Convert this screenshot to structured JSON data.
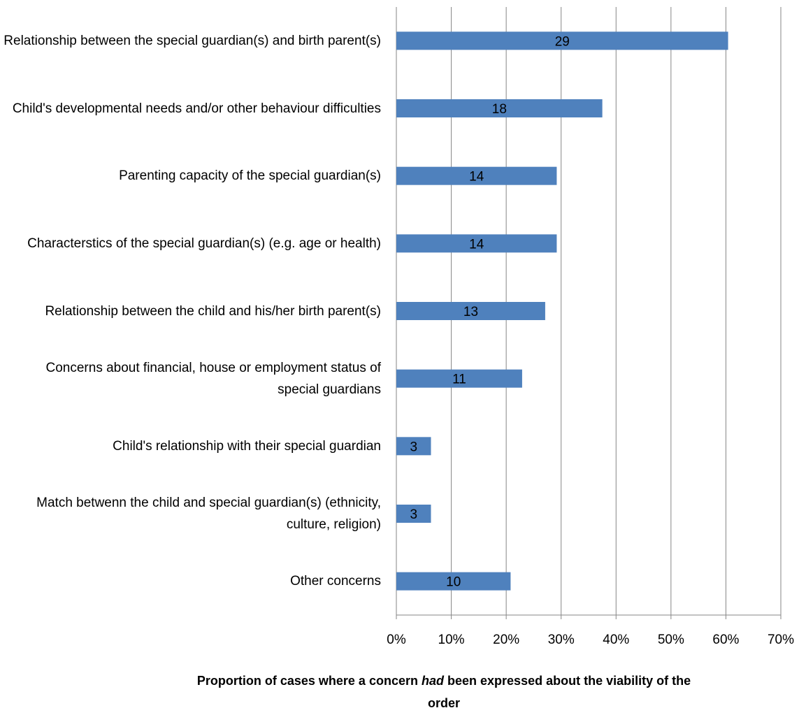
{
  "chart_data": {
    "type": "bar",
    "orientation": "horizontal",
    "title_parts": [
      "Proportion of cases where a concern",
      "had",
      "been expressed about the viability of the",
      "order"
    ],
    "categories": [
      "Relationship between the special guardian(s) and birth parent(s)",
      "Child's developmental needs and/or other behaviour difficulties",
      "Parenting capacity of the special guardian(s)",
      "Characterstics of the special guardian(s) (e.g. age or health)",
      "Relationship between the child and his/her birth parent(s)",
      "Concerns about financial, house or employment status of special guardians",
      "Child's relationship with their special guardian",
      "Match betwenn the child and special guardian(s) (ethnicity, culture, religion)",
      "Other concerns"
    ],
    "values": [
      60.4,
      37.5,
      29.2,
      29.2,
      27.1,
      22.9,
      6.3,
      6.3,
      20.8
    ],
    "counts": [
      29,
      18,
      14,
      14,
      13,
      11,
      3,
      3,
      10
    ],
    "color": "#4f81bd",
    "xlim": [
      0,
      70
    ],
    "xticks": [
      {
        "value": 0,
        "label": "0%"
      },
      {
        "value": 10,
        "label": "10%"
      },
      {
        "value": 20,
        "label": "20%"
      },
      {
        "value": 30,
        "label": "30%"
      },
      {
        "value": 40,
        "label": "40%"
      },
      {
        "value": 50,
        "label": "50%"
      },
      {
        "value": 60,
        "label": "60%"
      },
      {
        "value": 70,
        "label": "70%"
      }
    ],
    "grid": true
  }
}
